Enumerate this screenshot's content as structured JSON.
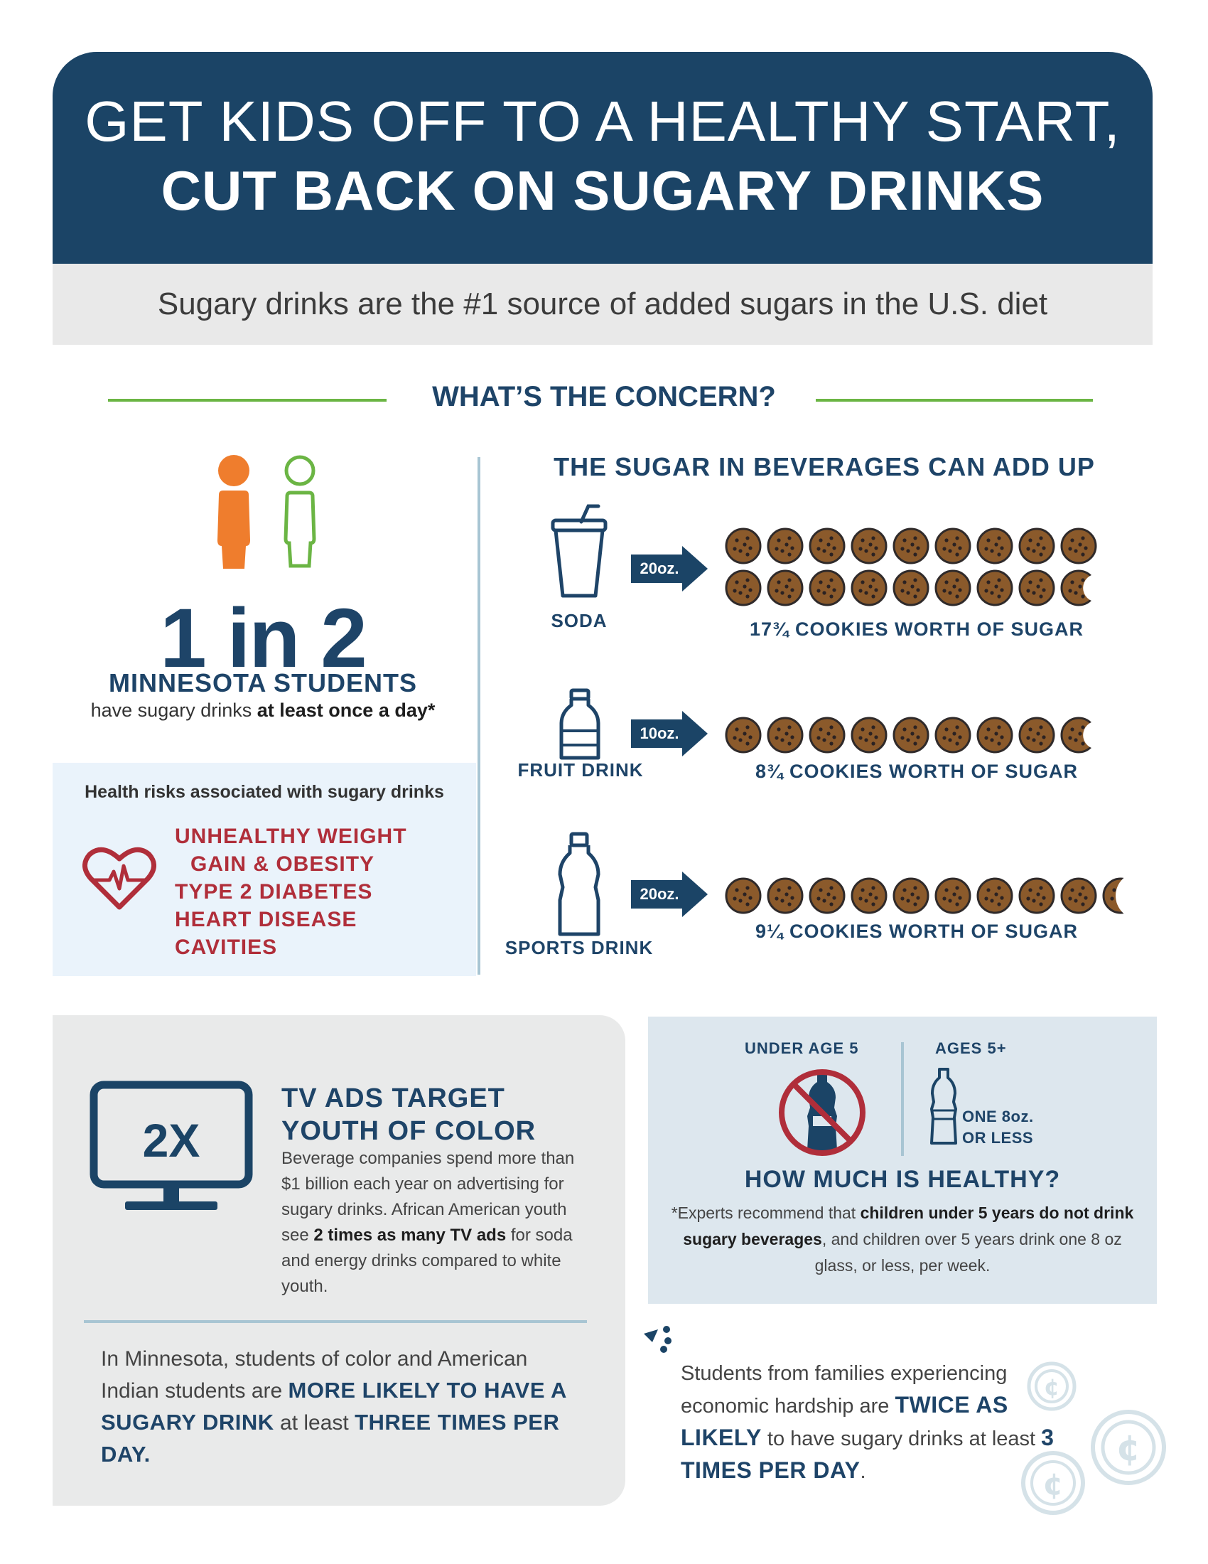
{
  "header": {
    "title_line1": "GET KIDS OFF TO A HEALTHY START,",
    "title_line2": "CUT BACK ON SUGARY DRINKS"
  },
  "subtitle": "Sugary drinks are the #1 source of added sugars in the U.S. diet",
  "concern": {
    "title": "WHAT’S THE CONCERN?",
    "stat": "1 in 2",
    "stat_label": "MINNESOTA STUDENTS",
    "stat_desc_pre": "have sugary drinks ",
    "stat_desc_bold": "at least once a day*",
    "risk_title": "Health risks associated with sugary drinks",
    "risks": [
      "UNHEALTHY WEIGHT",
      "GAIN & OBESITY",
      "TYPE 2 DIABETES",
      "HEART DISEASE",
      "CAVITIES"
    ],
    "icons": [
      "person-orange-icon",
      "person-green-outline-icon",
      "heart-rate-icon"
    ]
  },
  "beverages": {
    "title": "THE SUGAR IN BEVERAGES CAN ADD UP",
    "items": [
      {
        "label": "SODA",
        "size": "20oz.",
        "cookies": 17.75,
        "caption": "17¾ COOKIES WORTH OF SUGAR",
        "icon": "soda-cup-icon"
      },
      {
        "label": "FRUIT DRINK",
        "size": "10oz.",
        "cookies": 8.75,
        "caption": "8¾ COOKIES WORTH OF SUGAR",
        "icon": "juice-bottle-icon"
      },
      {
        "label": "SPORTS DRINK",
        "size": "20oz.",
        "cookies": 9.25,
        "caption": "9¼ COOKIES WORTH OF SUGAR",
        "icon": "sports-bottle-icon"
      }
    ]
  },
  "tv": {
    "badge": "2X",
    "head_line1": "TV ADS TARGET",
    "head_line2": "YOUTH OF COLOR",
    "body_pre": "Beverage companies spend more than $1 billion each year on advertising for sugary drinks. African American youth see ",
    "body_bold": "2 times as many TV ads",
    "body_post": " for soda and energy drinks compared to white youth.",
    "icon": "tv-monitor-icon"
  },
  "minnesota": {
    "pre": "In Minnesota, students of color and American Indian students are ",
    "bold1": "MORE LIKELY TO HAVE A SUGARY DRINK",
    "mid": " at least ",
    "bold2": "THREE TIMES PER DAY."
  },
  "ages": {
    "under5_label": "UNDER AGE 5",
    "over5_label": "AGES 5+",
    "limit_line1": "ONE 8oz.",
    "limit_line2": "OR LESS",
    "title": "HOW MUCH IS HEALTHY?",
    "body_pre": "*Experts recommend that ",
    "body_bold": "children under 5 years do not drink sugary beverages",
    "body_post": ", and children over 5 years drink one 8 oz glass, or less, per week.",
    "icons": [
      "no-bottle-icon",
      "bottle-icon"
    ]
  },
  "hardship": {
    "pre": "Students from families experiencing economic hardship are ",
    "bold1": "TWICE AS LIKELY",
    "mid": " to have sugary drinks at least ",
    "bold2": "3 TIMES PER DAY",
    "post": ".",
    "icons": [
      "coin-cent-icon",
      "triangle-dots-icon"
    ]
  },
  "colors": {
    "navy": "#1b4466",
    "green": "#6bb544",
    "orange": "#ef7d2d",
    "red": "#b02e3a",
    "cookie": "#8b5a2b"
  }
}
